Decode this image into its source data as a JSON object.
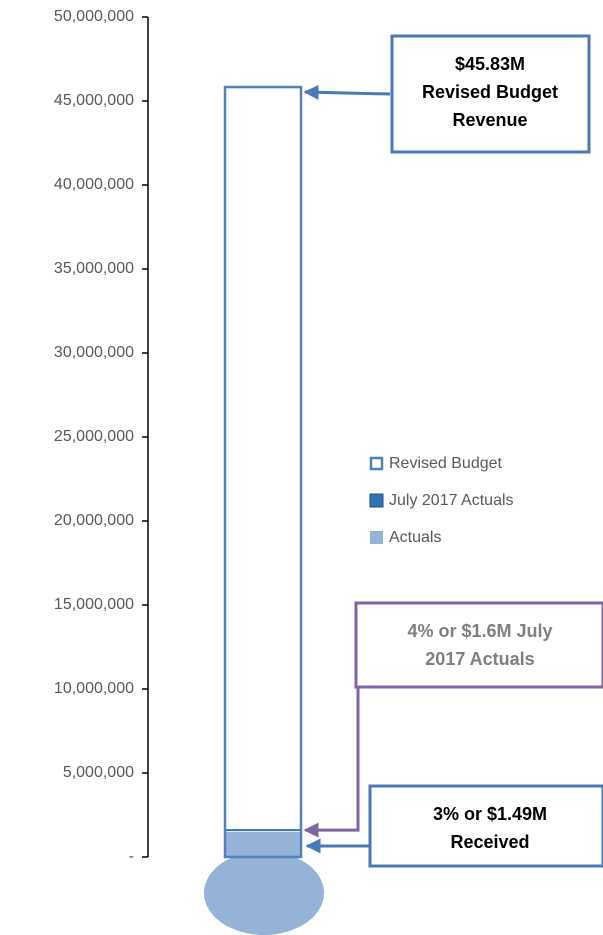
{
  "chart_data": {
    "type": "bar",
    "series": [
      {
        "name": "Revised Budget",
        "color": "#4f81bd",
        "values": [
          45830000
        ]
      },
      {
        "name": "July 2017 Actuals",
        "color": "#2e75b6",
        "values": [
          1600000
        ]
      },
      {
        "name": "Actuals",
        "color": "#95b3d7",
        "values": [
          1490000
        ]
      }
    ],
    "ylim": [
      0,
      50000000
    ],
    "yticks": [
      {
        "value": 0,
        "label": "-"
      },
      {
        "value": 5000000,
        "label": "5,000,000"
      },
      {
        "value": 10000000,
        "label": "10,000,000"
      },
      {
        "value": 15000000,
        "label": "15,000,000"
      },
      {
        "value": 20000000,
        "label": "20,000,000"
      },
      {
        "value": 25000000,
        "label": "25,000,000"
      },
      {
        "value": 30000000,
        "label": "30,000,000"
      },
      {
        "value": 35000000,
        "label": "35,000,000"
      },
      {
        "value": 40000000,
        "label": "40,000,000"
      },
      {
        "value": 45000000,
        "label": "45,000,000"
      },
      {
        "value": 50000000,
        "label": "50,000,000"
      }
    ],
    "annotations": [
      {
        "lines": [
          "$45.83M",
          "Revised Budget",
          "Revenue"
        ],
        "color": "#4a7ab5",
        "text_color": "#000000"
      },
      {
        "lines": [
          "4% or $1.6M July",
          "2017 Actuals"
        ],
        "color": "#8064a2",
        "text_color": "#7f7f7f"
      },
      {
        "lines": [
          "3% or $1.49M",
          "Received"
        ],
        "color": "#4a7ab5",
        "text_color": "#000000"
      }
    ]
  }
}
